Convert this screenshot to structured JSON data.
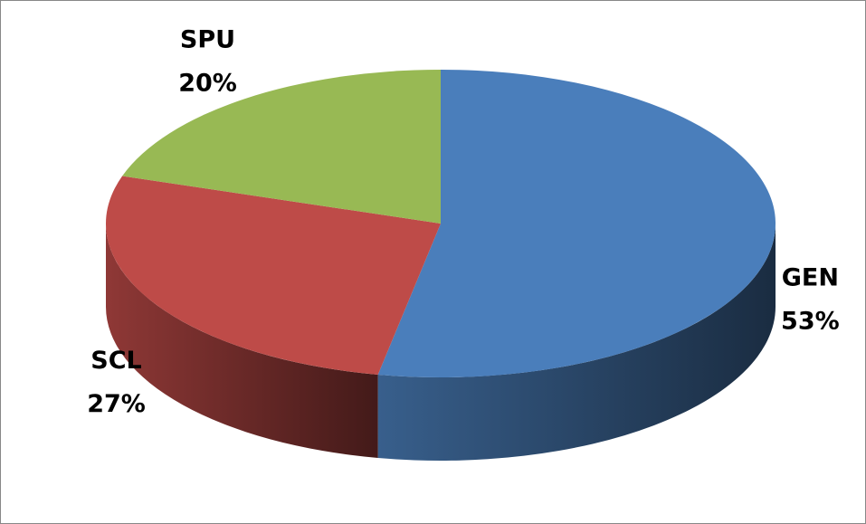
{
  "chart_data": {
    "type": "pie3d",
    "categories": [
      "GEN",
      "SCL",
      "SPU"
    ],
    "values": [
      53,
      27,
      20
    ],
    "value_labels": [
      "53%",
      "27%",
      "20%"
    ],
    "colors": [
      "#4a7ebb",
      "#be4b48",
      "#98b954"
    ]
  }
}
